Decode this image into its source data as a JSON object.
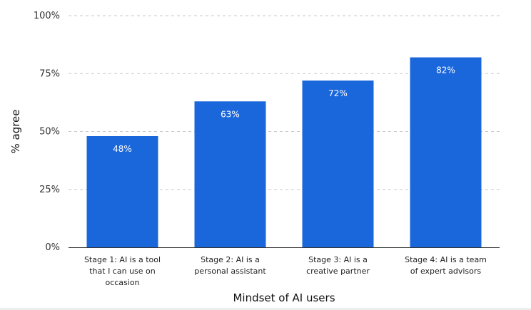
{
  "chart_data": {
    "type": "bar",
    "title": "",
    "xlabel": "Mindset of AI users",
    "ylabel": "% agree",
    "categories": [
      [
        "Stage 1: AI is a tool",
        "that I can use on",
        "occasion"
      ],
      [
        "Stage 2: AI is a",
        "personal assistant"
      ],
      [
        "Stage 3: AI is a",
        "creative partner"
      ],
      [
        "Stage 4: AI is a team",
        "of expert advisors"
      ]
    ],
    "values": [
      48,
      63,
      72,
      82
    ],
    "value_labels": [
      "48%",
      "63%",
      "72%",
      "82%"
    ],
    "ylim": [
      0,
      100
    ],
    "yticks": [
      0,
      25,
      50,
      75,
      100
    ],
    "ytick_labels": [
      "0%",
      "25%",
      "50%",
      "75%",
      "100%"
    ],
    "grid": true,
    "legend": "none",
    "colors": {
      "bar": "#1a67dc",
      "grid": "#c8c8c8",
      "axis": "#333333"
    }
  }
}
